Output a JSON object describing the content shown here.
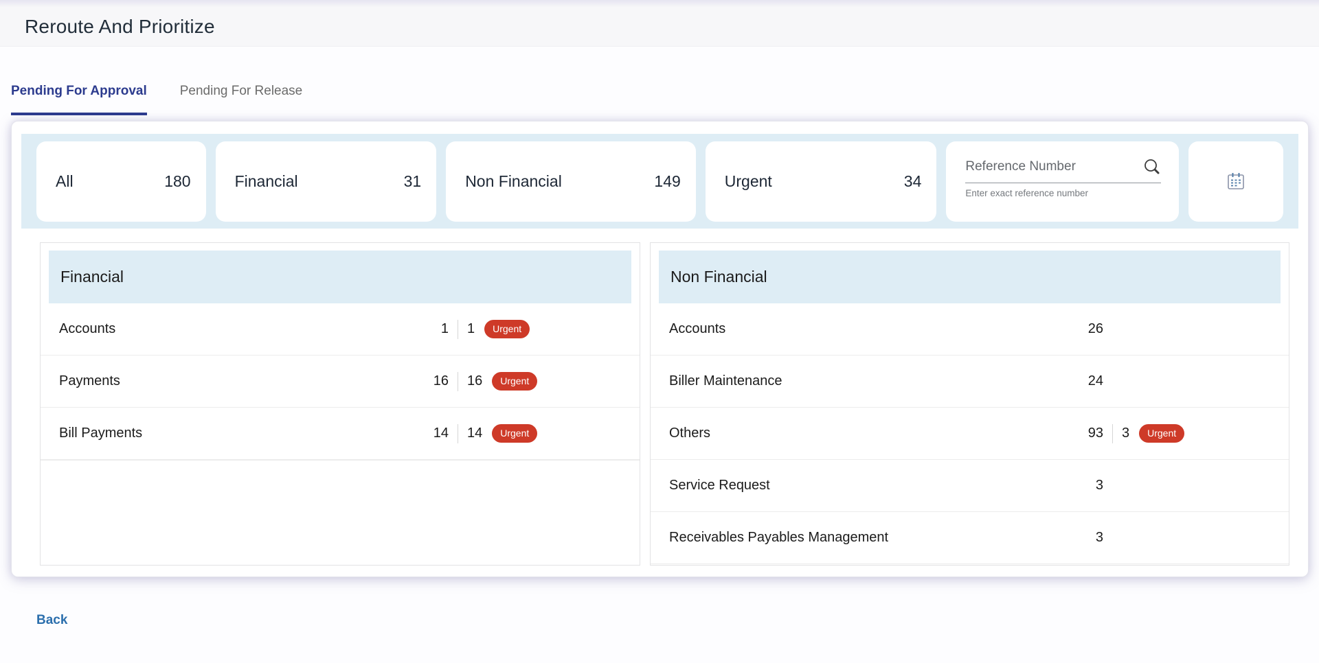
{
  "page": {
    "title": "Reroute And Prioritize",
    "back_label": "Back"
  },
  "tabs": [
    {
      "label": "Pending For Approval",
      "active": true
    },
    {
      "label": "Pending For Release",
      "active": false
    }
  ],
  "filters": {
    "tiles": [
      {
        "label": "All",
        "count": "180"
      },
      {
        "label": "Financial",
        "count": "31"
      },
      {
        "label": "Non Financial",
        "count": "149"
      },
      {
        "label": "Urgent",
        "count": "34"
      }
    ],
    "search": {
      "placeholder": "Reference Number",
      "value": "",
      "helper": "Enter exact reference number",
      "icon": "search-icon"
    },
    "date_filter": {
      "icon": "calendar-icon"
    }
  },
  "panels": [
    {
      "title": "Financial",
      "rows": [
        {
          "label": "Accounts",
          "count": "1",
          "urgent_count": "1",
          "urgent_label": "Urgent"
        },
        {
          "label": "Payments",
          "count": "16",
          "urgent_count": "16",
          "urgent_label": "Urgent"
        },
        {
          "label": "Bill Payments",
          "count": "14",
          "urgent_count": "14",
          "urgent_label": "Urgent"
        }
      ]
    },
    {
      "title": "Non Financial",
      "rows": [
        {
          "label": "Accounts",
          "count": "26"
        },
        {
          "label": "Biller Maintenance",
          "count": "24"
        },
        {
          "label": "Others",
          "count": "93",
          "urgent_count": "3",
          "urgent_label": "Urgent"
        },
        {
          "label": "Service Request",
          "count": "3"
        },
        {
          "label": "Receivables Payables Management",
          "count": "3"
        }
      ]
    }
  ],
  "colors": {
    "accent_tab": "#2c3b8e",
    "filter_strip_bg": "#deedf5",
    "panel_header_bg": "#deedf5",
    "urgent_badge": "#ce3a28",
    "back_link": "#2c6fad"
  }
}
